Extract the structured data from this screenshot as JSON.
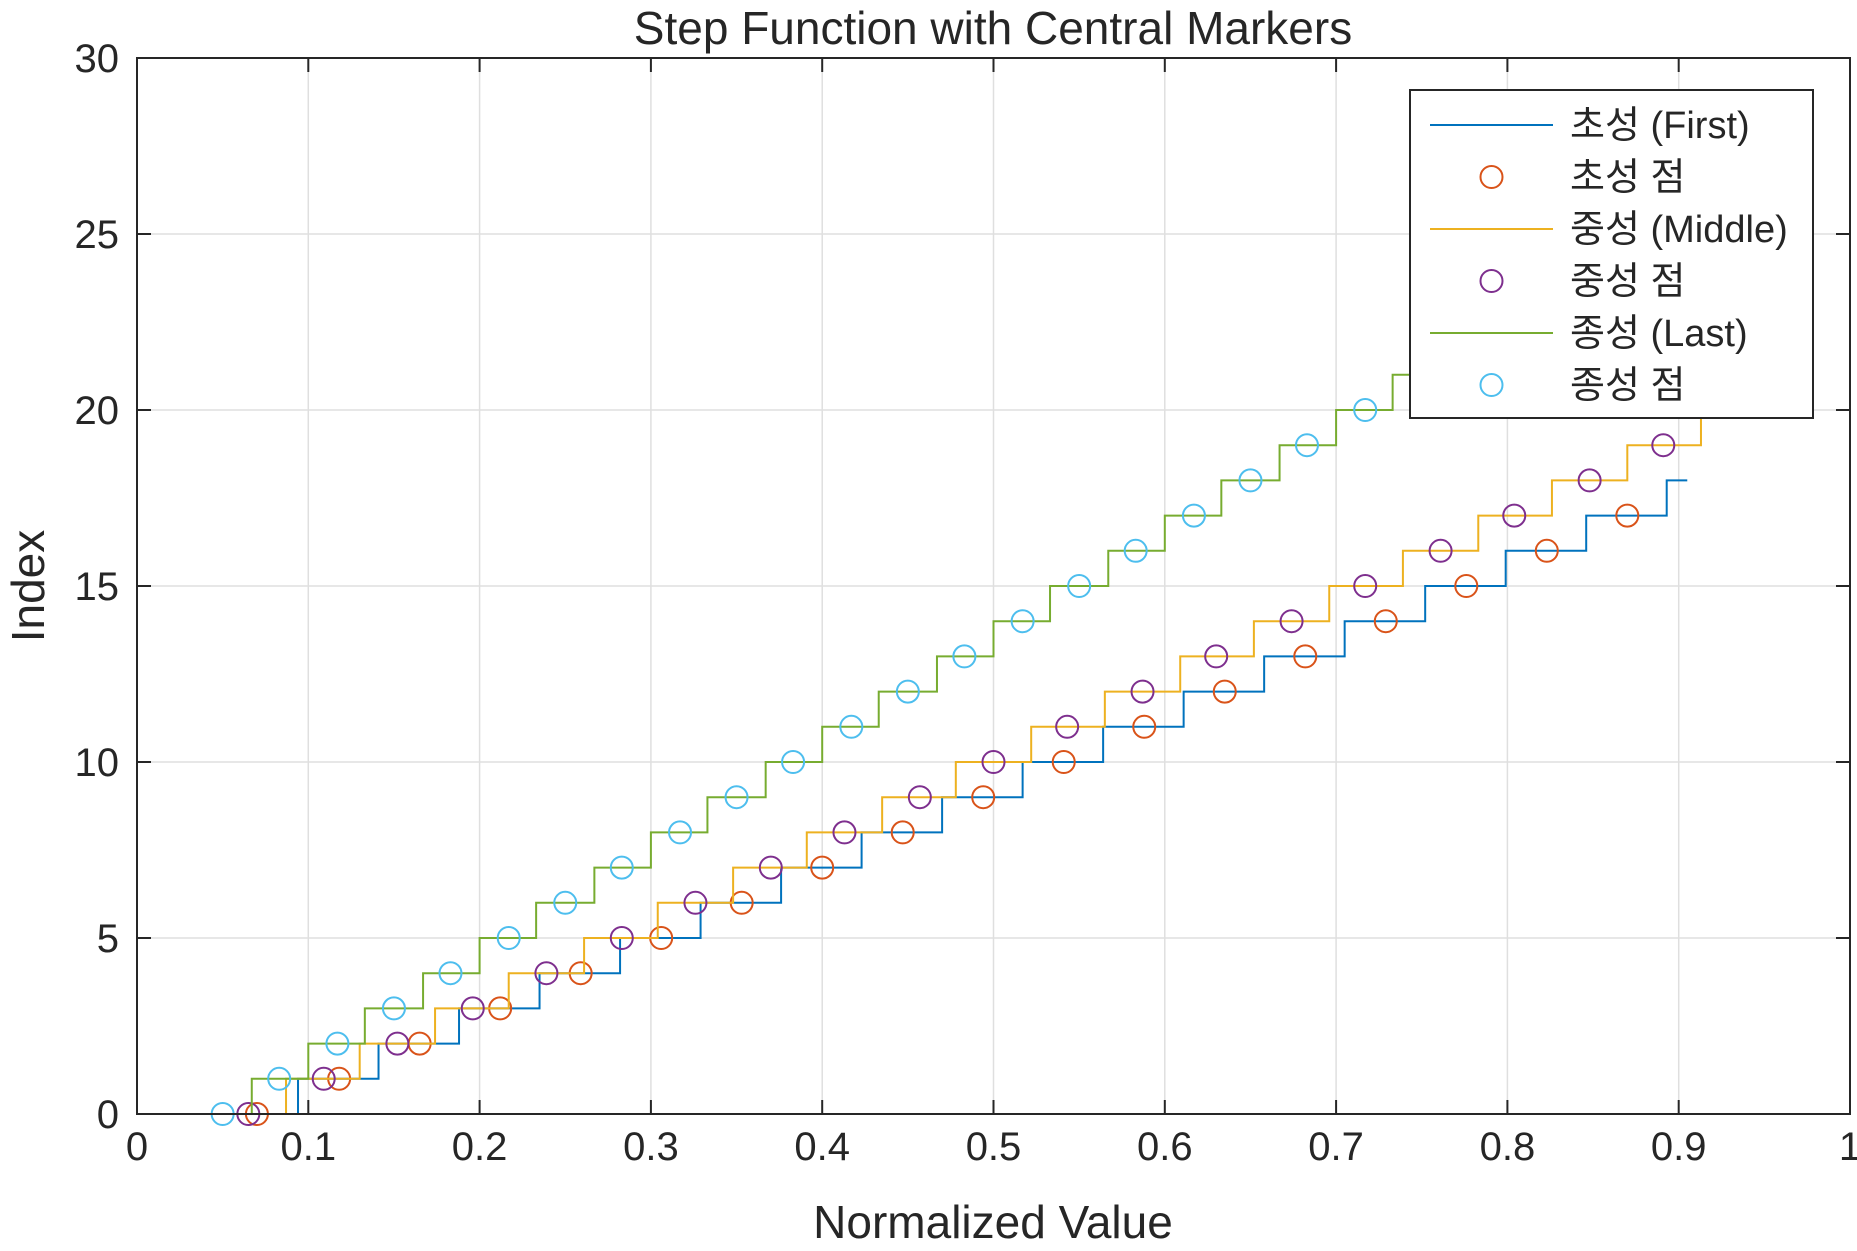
{
  "chart_data": {
    "type": "line",
    "title": "Step Function with Central Markers",
    "xlabel": "Normalized Value",
    "ylabel": "Index",
    "xlim": [
      0,
      1
    ],
    "ylim": [
      0,
      30
    ],
    "xticks": [
      0,
      0.1,
      0.2,
      0.3,
      0.4,
      0.5,
      0.6,
      0.7,
      0.8,
      0.9,
      1
    ],
    "xtick_labels": [
      "0",
      "0.1",
      "0.2",
      "0.3",
      "0.4",
      "0.5",
      "0.6",
      "0.7",
      "0.8",
      "0.9",
      "1"
    ],
    "yticks": [
      0,
      5,
      10,
      15,
      20,
      25,
      30
    ],
    "ytick_labels": [
      "0",
      "5",
      "10",
      "15",
      "20",
      "25",
      "30"
    ],
    "grid": true,
    "legend_position": "top-right",
    "series": [
      {
        "name": "초성 (First)",
        "style": "stairs",
        "color": "#0072BD",
        "x": [
          0.047,
          0.094,
          0.141,
          0.188,
          0.235,
          0.282,
          0.329,
          0.376,
          0.423,
          0.47,
          0.517,
          0.564,
          0.611,
          0.658,
          0.705,
          0.752,
          0.799,
          0.846,
          0.893,
          0.905
        ],
        "y": [
          0,
          1,
          2,
          3,
          4,
          5,
          6,
          7,
          8,
          9,
          10,
          11,
          12,
          13,
          14,
          15,
          16,
          17,
          18,
          18
        ]
      },
      {
        "name": "초성 점",
        "style": "markers",
        "color": "#D95319",
        "x": [
          0.07,
          0.118,
          0.165,
          0.212,
          0.259,
          0.306,
          0.353,
          0.4,
          0.447,
          0.494,
          0.541,
          0.588,
          0.635,
          0.682,
          0.729,
          0.776,
          0.823,
          0.87
        ],
        "y": [
          0,
          1,
          2,
          3,
          4,
          5,
          6,
          7,
          8,
          9,
          10,
          11,
          12,
          13,
          14,
          15,
          16,
          17
        ]
      },
      {
        "name": "중성 (Middle)",
        "style": "stairs",
        "color": "#EDB120",
        "x": [
          0.043,
          0.087,
          0.13,
          0.174,
          0.217,
          0.261,
          0.304,
          0.348,
          0.391,
          0.435,
          0.478,
          0.522,
          0.565,
          0.609,
          0.652,
          0.696,
          0.739,
          0.783,
          0.826,
          0.87,
          0.913,
          0.921
        ],
        "y": [
          0,
          1,
          2,
          3,
          4,
          5,
          6,
          7,
          8,
          9,
          10,
          11,
          12,
          13,
          14,
          15,
          16,
          17,
          18,
          19,
          20,
          20
        ]
      },
      {
        "name": "중성 점",
        "style": "markers",
        "color": "#7E2F8E",
        "x": [
          0.065,
          0.109,
          0.152,
          0.196,
          0.239,
          0.283,
          0.326,
          0.37,
          0.413,
          0.457,
          0.5,
          0.543,
          0.587,
          0.63,
          0.674,
          0.717,
          0.761,
          0.804,
          0.848,
          0.891
        ],
        "y": [
          0,
          1,
          2,
          3,
          4,
          5,
          6,
          7,
          8,
          9,
          10,
          11,
          12,
          13,
          14,
          15,
          16,
          17,
          18,
          19
        ]
      },
      {
        "name": "종성 (Last)",
        "style": "stairs",
        "color": "#77AC30",
        "x": [
          0.033,
          0.067,
          0.1,
          0.133,
          0.167,
          0.2,
          0.233,
          0.267,
          0.3,
          0.333,
          0.367,
          0.4,
          0.433,
          0.467,
          0.5,
          0.533,
          0.567,
          0.6,
          0.633,
          0.667,
          0.7,
          0.733,
          0.767,
          0.8
        ],
        "y": [
          0,
          1,
          2,
          3,
          4,
          5,
          6,
          7,
          8,
          9,
          10,
          11,
          12,
          13,
          14,
          15,
          16,
          17,
          18,
          19,
          20,
          21,
          22,
          22
        ]
      },
      {
        "name": "종성 점",
        "style": "markers",
        "color": "#4DBEEE",
        "x": [
          0.05,
          0.083,
          0.117,
          0.15,
          0.183,
          0.217,
          0.25,
          0.283,
          0.317,
          0.35,
          0.383,
          0.417,
          0.45,
          0.483,
          0.517,
          0.55,
          0.583,
          0.617,
          0.65,
          0.683,
          0.717
        ],
        "y": [
          0,
          1,
          2,
          3,
          4,
          5,
          6,
          7,
          8,
          9,
          10,
          11,
          12,
          13,
          14,
          15,
          16,
          17,
          18,
          19,
          20
        ]
      }
    ]
  }
}
